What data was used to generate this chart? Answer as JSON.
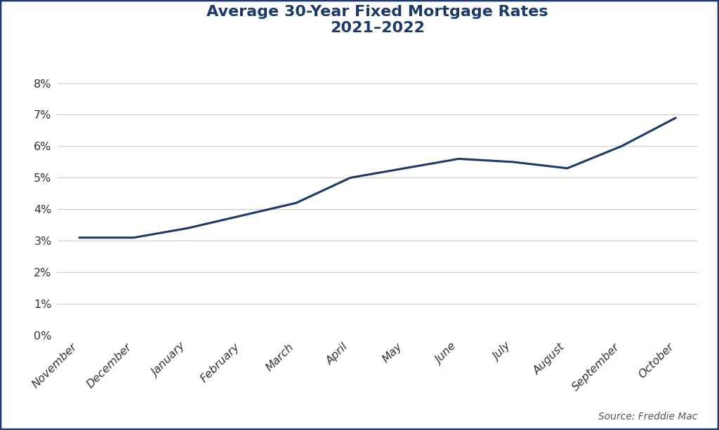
{
  "title_line1": "Average 30-Year Fixed Mortgage Rates",
  "title_line2": "2021–2022",
  "source_text": "Source: Freddie Mac",
  "categories": [
    "November",
    "December",
    "January",
    "February",
    "March",
    "April",
    "May",
    "June",
    "July",
    "August",
    "September",
    "October"
  ],
  "values": [
    0.031,
    0.031,
    0.034,
    0.038,
    0.042,
    0.05,
    0.053,
    0.056,
    0.055,
    0.053,
    0.06,
    0.069
  ],
  "line_color": "#1b3a6b",
  "line_width": 2.2,
  "ylim": [
    0,
    0.09
  ],
  "yticks": [
    0,
    0.01,
    0.02,
    0.03,
    0.04,
    0.05,
    0.06,
    0.07,
    0.08
  ],
  "ytick_labels": [
    "0%",
    "1%",
    "2%",
    "3%",
    "4%",
    "5%",
    "6%",
    "7%",
    "8%"
  ],
  "grid_color": "#cccccc",
  "background_color": "#ffffff",
  "border_color": "#1b3a6b",
  "title_fontsize": 16,
  "title_color": "#1b3a6b",
  "tick_fontsize": 11.5,
  "source_fontsize": 10,
  "tick_color": "#333333",
  "source_color": "#555555"
}
